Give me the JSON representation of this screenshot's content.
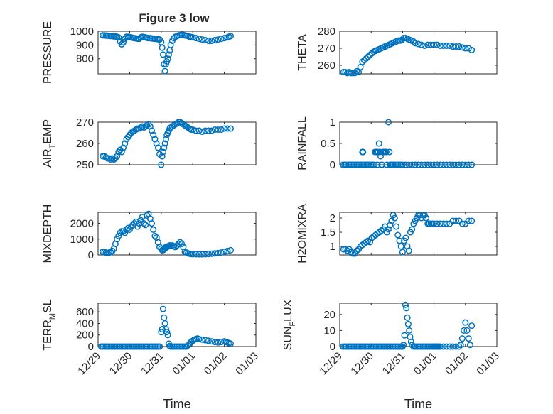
{
  "figure": {
    "title": "Figure 3 low"
  },
  "chart_data": [
    {
      "type": "scatter",
      "ylabel": "PRESSURE",
      "ylabel_sub": "",
      "xlabel": "",
      "ylim": [
        690,
        1000
      ],
      "yticks": [
        800,
        900,
        1000
      ],
      "xlim": [
        0,
        5
      ],
      "xticks": [],
      "title": "Figure 3 low",
      "marker_color": "#0072BD",
      "x": [
        0.15,
        0.2,
        0.25,
        0.3,
        0.35,
        0.4,
        0.45,
        0.5,
        0.55,
        0.6,
        0.65,
        0.7,
        0.75,
        0.8,
        0.85,
        0.9,
        0.95,
        1.0,
        1.05,
        1.1,
        1.15,
        1.2,
        1.25,
        1.3,
        1.35,
        1.4,
        1.45,
        1.5,
        1.55,
        1.6,
        1.65,
        1.7,
        1.75,
        1.8,
        1.85,
        1.9,
        1.95,
        2.0,
        2.03,
        2.06,
        2.09,
        2.12,
        2.15,
        2.18,
        2.21,
        2.24,
        2.27,
        2.3,
        2.35,
        2.4,
        2.45,
        2.5,
        2.55,
        2.6,
        2.65,
        2.7,
        2.75,
        2.8,
        2.85,
        2.9,
        2.95,
        3.0,
        3.1,
        3.2,
        3.3,
        3.4,
        3.5,
        3.6,
        3.7,
        3.8,
        3.9,
        4.0,
        4.1,
        4.15,
        4.2
      ],
      "y": [
        970,
        970,
        968,
        968,
        966,
        965,
        965,
        962,
        962,
        960,
        955,
        925,
        905,
        920,
        945,
        960,
        960,
        958,
        955,
        952,
        950,
        948,
        946,
        945,
        955,
        960,
        958,
        955,
        952,
        950,
        950,
        948,
        946,
        945,
        944,
        942,
        940,
        920,
        880,
        830,
        760,
        710,
        760,
        780,
        800,
        830,
        860,
        900,
        930,
        950,
        960,
        965,
        970,
        972,
        974,
        973,
        970,
        968,
        965,
        960,
        958,
        955,
        950,
        945,
        940,
        935,
        930,
        930,
        935,
        940,
        945,
        950,
        955,
        960,
        965
      ]
    },
    {
      "type": "scatter",
      "ylabel": "THETA",
      "ylabel_sub": "",
      "xlabel": "",
      "ylim": [
        255,
        280
      ],
      "yticks": [
        260,
        270,
        280
      ],
      "xlim": [
        0,
        5
      ],
      "xticks": [],
      "marker_color": "#0072BD",
      "x": [
        0.12,
        0.18,
        0.24,
        0.3,
        0.36,
        0.42,
        0.48,
        0.54,
        0.6,
        0.66,
        0.72,
        0.78,
        0.84,
        0.9,
        0.96,
        1.02,
        1.08,
        1.14,
        1.2,
        1.26,
        1.32,
        1.38,
        1.44,
        1.5,
        1.56,
        1.62,
        1.68,
        1.74,
        1.8,
        1.86,
        1.92,
        1.98,
        2.04,
        2.1,
        2.16,
        2.22,
        2.28,
        2.34,
        2.4,
        2.5,
        2.6,
        2.7,
        2.8,
        2.9,
        3.0,
        3.1,
        3.2,
        3.3,
        3.4,
        3.5,
        3.6,
        3.7,
        3.8,
        3.9,
        4.0,
        4.1,
        4.2
      ],
      "y": [
        256,
        256,
        255.5,
        256,
        255.5,
        255.5,
        255.5,
        256.5,
        256,
        259,
        262,
        263,
        264,
        265,
        266,
        267,
        268,
        268.5,
        269,
        269.5,
        270,
        270.5,
        271,
        271.5,
        272,
        272.5,
        273,
        273.5,
        274,
        274.5,
        274.5,
        275,
        276,
        276,
        275.5,
        275,
        274.5,
        274,
        273,
        272.5,
        272,
        271.5,
        272,
        272,
        272,
        272,
        271.5,
        271.5,
        271.5,
        271.5,
        271,
        271,
        271,
        270.5,
        270,
        270,
        269
      ]
    },
    {
      "type": "scatter",
      "ylabel": "AIR",
      "ylabel_sub": "T",
      "ylabel_rest": "EMP",
      "xlabel": "",
      "ylim": [
        250,
        270
      ],
      "yticks": [
        250,
        260,
        270
      ],
      "xlim": [
        0,
        5
      ],
      "xticks": [],
      "marker_color": "#0072BD",
      "x": [
        0.15,
        0.2,
        0.25,
        0.3,
        0.35,
        0.4,
        0.45,
        0.5,
        0.55,
        0.6,
        0.65,
        0.7,
        0.75,
        0.8,
        0.85,
        0.9,
        0.95,
        1.0,
        1.05,
        1.1,
        1.15,
        1.2,
        1.25,
        1.3,
        1.35,
        1.4,
        1.45,
        1.5,
        1.55,
        1.6,
        1.65,
        1.7,
        1.75,
        1.8,
        1.85,
        1.9,
        1.95,
        2.0,
        2.03,
        2.06,
        2.09,
        2.12,
        2.15,
        2.18,
        2.21,
        2.24,
        2.27,
        2.3,
        2.35,
        2.4,
        2.45,
        2.5,
        2.55,
        2.6,
        2.65,
        2.7,
        2.75,
        2.8,
        2.85,
        2.9,
        2.95,
        3.0,
        3.1,
        3.2,
        3.3,
        3.4,
        3.5,
        3.6,
        3.7,
        3.8,
        3.9,
        4.0,
        4.1,
        4.2
      ],
      "y": [
        254,
        254,
        253.5,
        253,
        253,
        252.5,
        253,
        252.5,
        253,
        254,
        256,
        257,
        256,
        258,
        260,
        262,
        263,
        264,
        265,
        265.5,
        266,
        266.5,
        267,
        267,
        267.5,
        268,
        267.5,
        268,
        268.5,
        269,
        268,
        266,
        264,
        262,
        260,
        258,
        255,
        250,
        254,
        256,
        258,
        260,
        262,
        264,
        265,
        266,
        267,
        267.5,
        268,
        268.5,
        269,
        269.5,
        270,
        270,
        269.5,
        269,
        268.5,
        268,
        267.5,
        267,
        266.5,
        266.5,
        266,
        266,
        265.5,
        266,
        266,
        266,
        266.5,
        266.5,
        266.5,
        267,
        267,
        267
      ]
    },
    {
      "type": "scatter",
      "ylabel": "RAINFALL",
      "ylabel_sub": "",
      "xlabel": "",
      "ylim": [
        0,
        1
      ],
      "yticks": [
        0,
        0.5,
        1
      ],
      "xlim": [
        0,
        5
      ],
      "xticks": [],
      "marker_color": "#0072BD",
      "x": [
        0.1,
        0.15,
        0.2,
        0.25,
        0.3,
        0.35,
        0.4,
        0.45,
        0.5,
        0.55,
        0.6,
        0.65,
        0.7,
        0.72,
        0.74,
        0.76,
        0.8,
        0.85,
        0.9,
        0.95,
        1.0,
        1.05,
        1.1,
        1.12,
        1.14,
        1.16,
        1.18,
        1.2,
        1.22,
        1.25,
        1.28,
        1.3,
        1.33,
        1.35,
        1.38,
        1.4,
        1.43,
        1.45,
        1.48,
        1.5,
        1.55,
        1.58,
        1.6,
        1.62,
        1.64,
        1.66,
        1.7,
        1.75,
        1.8,
        1.85,
        1.9,
        1.95,
        2.0,
        2.1,
        2.2,
        2.3,
        2.4,
        2.5,
        2.6,
        2.7,
        2.8,
        2.9,
        3.0,
        3.1,
        3.2,
        3.3,
        3.4,
        3.5,
        3.6,
        3.7,
        3.8,
        3.9,
        4.0,
        4.1,
        4.2
      ],
      "y": [
        0,
        0,
        0,
        0,
        0,
        0,
        0,
        0,
        0,
        0,
        0,
        0,
        0,
        0.3,
        0.3,
        0,
        0,
        0,
        0,
        0,
        0,
        0,
        0,
        0.3,
        0.3,
        0.3,
        0.3,
        0,
        0.3,
        0.5,
        0.3,
        0.2,
        0,
        0,
        0.3,
        0.3,
        0.3,
        0.3,
        0.3,
        0,
        1.0,
        0.3,
        0,
        0,
        0,
        0,
        0,
        0,
        0,
        0,
        0,
        0,
        0,
        0,
        0,
        0,
        0,
        0,
        0,
        0,
        0,
        0,
        0,
        0,
        0,
        0,
        0,
        0,
        0,
        0,
        0,
        0,
        0,
        0,
        0
      ]
    },
    {
      "type": "scatter",
      "ylabel": "MIXDEPTH",
      "ylabel_sub": "",
      "xlabel": "",
      "ylim": [
        0,
        2700
      ],
      "yticks": [
        0,
        1000,
        2000
      ],
      "xlim": [
        0,
        5
      ],
      "xticks": [],
      "marker_color": "#0072BD",
      "x": [
        0.15,
        0.2,
        0.25,
        0.3,
        0.35,
        0.4,
        0.45,
        0.5,
        0.55,
        0.6,
        0.65,
        0.7,
        0.75,
        0.8,
        0.85,
        0.9,
        0.95,
        1.0,
        1.05,
        1.1,
        1.15,
        1.2,
        1.25,
        1.3,
        1.35,
        1.4,
        1.45,
        1.5,
        1.55,
        1.6,
        1.65,
        1.7,
        1.75,
        1.8,
        1.85,
        1.9,
        1.95,
        2.0,
        2.03,
        2.06,
        2.09,
        2.12,
        2.15,
        2.18,
        2.21,
        2.24,
        2.27,
        2.3,
        2.35,
        2.4,
        2.45,
        2.5,
        2.55,
        2.6,
        2.65,
        2.7,
        2.75,
        2.8,
        2.85,
        2.9,
        2.95,
        3.0,
        3.1,
        3.2,
        3.3,
        3.4,
        3.5,
        3.6,
        3.7,
        3.8,
        3.9,
        4.0,
        4.1,
        4.2
      ],
      "y": [
        200,
        180,
        150,
        120,
        150,
        180,
        250,
        400,
        700,
        1000,
        1200,
        1400,
        1500,
        1500,
        1400,
        1600,
        1700,
        1600,
        1800,
        1900,
        2000,
        2100,
        1800,
        2000,
        2200,
        2400,
        2000,
        1900,
        2500,
        2600,
        2300,
        2000,
        1600,
        1200,
        1100,
        800,
        500,
        400,
        300,
        300,
        350,
        400,
        500,
        500,
        550,
        550,
        600,
        600,
        600,
        550,
        500,
        600,
        700,
        800,
        700,
        500,
        200,
        150,
        100,
        80,
        60,
        50,
        50,
        40,
        40,
        50,
        60,
        80,
        100,
        120,
        150,
        200,
        250,
        300
      ]
    },
    {
      "type": "scatter",
      "ylabel": "H2OMIXRA",
      "ylabel_sub": "",
      "xlabel": "",
      "ylim": [
        0.7,
        2.2
      ],
      "yticks": [
        1,
        1.5,
        2
      ],
      "xlim": [
        0,
        5
      ],
      "xticks": [],
      "marker_color": "#0072BD",
      "x": [
        0.12,
        0.18,
        0.24,
        0.3,
        0.36,
        0.42,
        0.48,
        0.54,
        0.6,
        0.66,
        0.72,
        0.78,
        0.84,
        0.9,
        0.96,
        1.02,
        1.08,
        1.14,
        1.2,
        1.26,
        1.32,
        1.38,
        1.44,
        1.5,
        1.55,
        1.6,
        1.65,
        1.7,
        1.75,
        1.8,
        1.85,
        1.9,
        1.95,
        2.0,
        2.05,
        2.1,
        2.15,
        2.2,
        2.25,
        2.3,
        2.35,
        2.4,
        2.45,
        2.5,
        2.55,
        2.6,
        2.65,
        2.7,
        2.75,
        2.8,
        2.85,
        2.9,
        2.95,
        3.0,
        3.1,
        3.2,
        3.3,
        3.4,
        3.5,
        3.6,
        3.7,
        3.8,
        3.9,
        4.0,
        4.1,
        4.2
      ],
      "y": [
        0.9,
        0.9,
        0.85,
        0.9,
        0.8,
        0.75,
        0.75,
        0.85,
        0.9,
        1.0,
        1.05,
        1.1,
        1.15,
        1.2,
        1.15,
        1.3,
        1.35,
        1.4,
        1.45,
        1.5,
        1.55,
        1.6,
        1.7,
        1.5,
        1.6,
        1.75,
        1.9,
        2.1,
        2.0,
        1.7,
        1.4,
        1.2,
        1.0,
        0.8,
        1.2,
        1.3,
        1.0,
        0.85,
        1.5,
        1.6,
        1.8,
        1.9,
        2.0,
        2.1,
        2.1,
        2.0,
        2.1,
        2.1,
        2.0,
        1.8,
        1.8,
        1.8,
        1.8,
        1.8,
        1.8,
        1.8,
        1.8,
        1.8,
        1.8,
        1.9,
        1.9,
        1.9,
        1.8,
        1.8,
        1.9,
        1.9
      ]
    },
    {
      "type": "scatter",
      "ylabel": "TERR",
      "ylabel_sub": "M",
      "ylabel_rest": "SL",
      "xlabel": "Time",
      "ylim": [
        0,
        750
      ],
      "yticks": [
        0,
        200,
        400,
        600
      ],
      "xlim": [
        0,
        5
      ],
      "xticks": [
        "12/29",
        "12/30",
        "12/31",
        "01/01",
        "01/02",
        "01/03"
      ],
      "marker_color": "#0072BD",
      "x": [
        0.1,
        0.15,
        0.2,
        0.25,
        0.3,
        0.35,
        0.4,
        0.45,
        0.5,
        0.55,
        0.6,
        0.65,
        0.7,
        0.75,
        0.8,
        0.85,
        0.9,
        0.95,
        1.0,
        1.05,
        1.1,
        1.15,
        1.2,
        1.25,
        1.3,
        1.35,
        1.4,
        1.45,
        1.5,
        1.55,
        1.6,
        1.65,
        1.7,
        1.75,
        1.8,
        1.85,
        1.9,
        1.95,
        2.0,
        2.03,
        2.06,
        2.09,
        2.12,
        2.15,
        2.18,
        2.21,
        2.24,
        2.27,
        2.3,
        2.35,
        2.4,
        2.45,
        2.5,
        2.55,
        2.6,
        2.65,
        2.7,
        2.75,
        2.8,
        2.85,
        2.9,
        2.95,
        3.0,
        3.05,
        3.1,
        3.15,
        3.2,
        3.3,
        3.4,
        3.5,
        3.6,
        3.7,
        3.8,
        3.9,
        4.0,
        4.05,
        4.1,
        4.15,
        4.2
      ],
      "y": [
        0,
        0,
        0,
        0,
        0,
        0,
        0,
        0,
        0,
        0,
        0,
        0,
        0,
        0,
        0,
        0,
        0,
        0,
        0,
        0,
        0,
        0,
        0,
        0,
        0,
        0,
        0,
        0,
        0,
        0,
        0,
        0,
        0,
        0,
        0,
        0,
        0,
        0,
        250,
        300,
        650,
        500,
        400,
        300,
        250,
        200,
        50,
        10,
        0,
        0,
        0,
        0,
        0,
        0,
        0,
        0,
        0,
        0,
        0,
        20,
        50,
        80,
        100,
        120,
        130,
        140,
        130,
        120,
        110,
        100,
        90,
        80,
        70,
        80,
        90,
        80,
        70,
        60,
        50
      ]
    },
    {
      "type": "scatter",
      "ylabel": "SUN",
      "ylabel_sub": "F",
      "ylabel_rest": "LUX",
      "xlabel": "Time",
      "ylim": [
        0,
        27
      ],
      "yticks": [
        0,
        10,
        20
      ],
      "xlim": [
        0,
        5
      ],
      "xticks": [
        "12/29",
        "12/30",
        "12/31",
        "01/01",
        "01/02",
        "01/03"
      ],
      "marker_color": "#0072BD",
      "x": [
        0.1,
        0.15,
        0.2,
        0.25,
        0.3,
        0.35,
        0.4,
        0.45,
        0.5,
        0.55,
        0.6,
        0.65,
        0.7,
        0.75,
        0.8,
        0.85,
        0.9,
        0.95,
        1.0,
        1.05,
        1.1,
        1.15,
        1.2,
        1.25,
        1.3,
        1.35,
        1.4,
        1.45,
        1.5,
        1.55,
        1.6,
        1.65,
        1.7,
        1.75,
        1.8,
        1.85,
        1.9,
        1.95,
        2.0,
        2.03,
        2.06,
        2.09,
        2.12,
        2.15,
        2.18,
        2.21,
        2.24,
        2.27,
        2.3,
        2.35,
        2.4,
        2.45,
        2.5,
        2.55,
        2.6,
        2.65,
        2.7,
        2.75,
        2.8,
        2.85,
        2.9,
        2.95,
        3.0,
        3.03,
        3.06,
        3.09,
        3.12,
        3.15,
        3.2,
        3.3,
        3.4,
        3.5,
        3.6,
        3.7,
        3.8,
        3.85,
        3.9,
        3.95,
        4.0,
        4.05,
        4.1,
        4.15,
        4.2
      ],
      "y": [
        0,
        0,
        0,
        0,
        0,
        0,
        0,
        0,
        0,
        0,
        0,
        0,
        0,
        0,
        0,
        0,
        0,
        0,
        0,
        0,
        0,
        0,
        0,
        0,
        0,
        0,
        0,
        0,
        0,
        0,
        0,
        0,
        0,
        0,
        0,
        0,
        0,
        0,
        0,
        1,
        7,
        26,
        24,
        18,
        14,
        10,
        6,
        3,
        1,
        0,
        0,
        0,
        0,
        0,
        0,
        0,
        0,
        0,
        0,
        0,
        0,
        0,
        0,
        0,
        0,
        0,
        0,
        0,
        0,
        0,
        0,
        0,
        0,
        0,
        0,
        1,
        5,
        10,
        15,
        10,
        5,
        1,
        13
      ]
    }
  ]
}
